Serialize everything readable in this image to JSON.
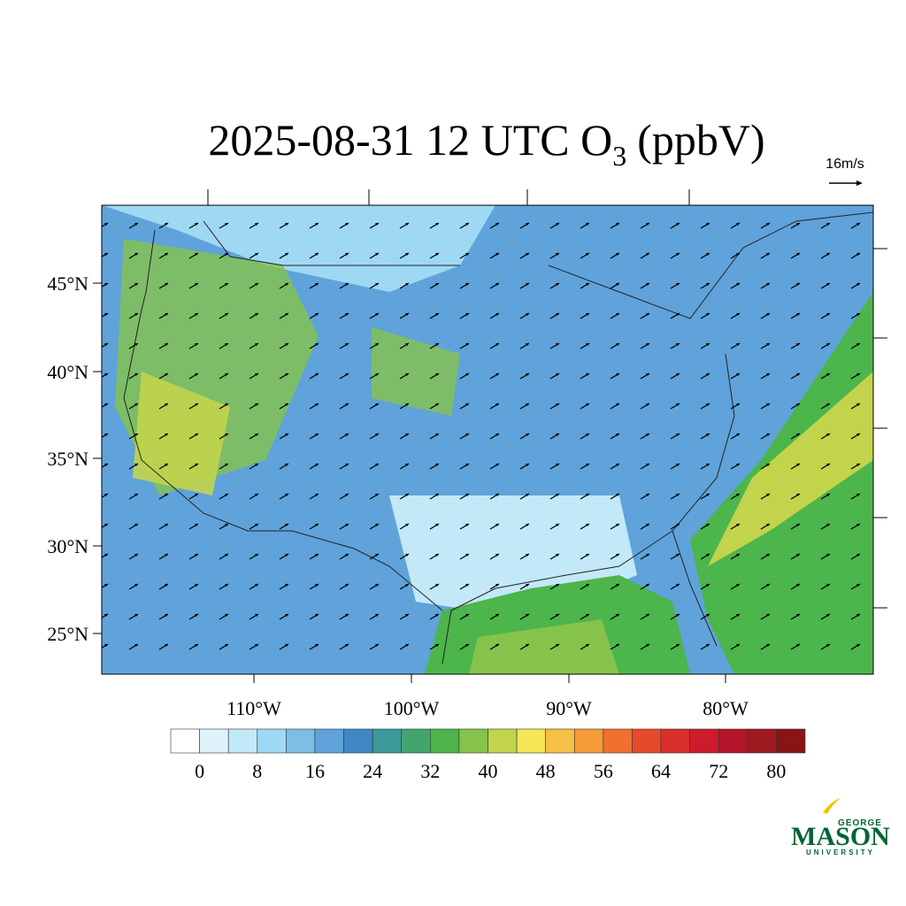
{
  "title": {
    "text": "2025-08-31 12 UTC O",
    "subscript": "3",
    "suffix": "(ppbV)"
  },
  "wind_reference": "16m/s",
  "lat_labels": [
    "45°N",
    "40°N",
    "35°N",
    "30°N",
    "25°N"
  ],
  "lon_labels": [
    "110°W",
    "100°W",
    "90°W",
    "80°W"
  ],
  "colorbar": {
    "range": [
      -4,
      84
    ],
    "ticks": [
      0,
      8,
      16,
      24,
      32,
      40,
      48,
      56,
      64,
      72,
      80
    ],
    "colors": [
      "#ffffff",
      "#dff3fb",
      "#c3e8f7",
      "#9fd8f3",
      "#7dbde6",
      "#5fa3da",
      "#3f88c5",
      "#3d9a9a",
      "#43a56e",
      "#4cb54b",
      "#86c34a",
      "#c2d44c",
      "#f5e655",
      "#f6c046",
      "#f59b3a",
      "#f07030",
      "#e64a2a",
      "#d8302a",
      "#cc1c2a",
      "#b3162a",
      "#a01a22",
      "#8a1515"
    ]
  },
  "logo": {
    "top": "GEORGE",
    "main": "MASON",
    "bottom": "UNIVERSITY"
  }
}
